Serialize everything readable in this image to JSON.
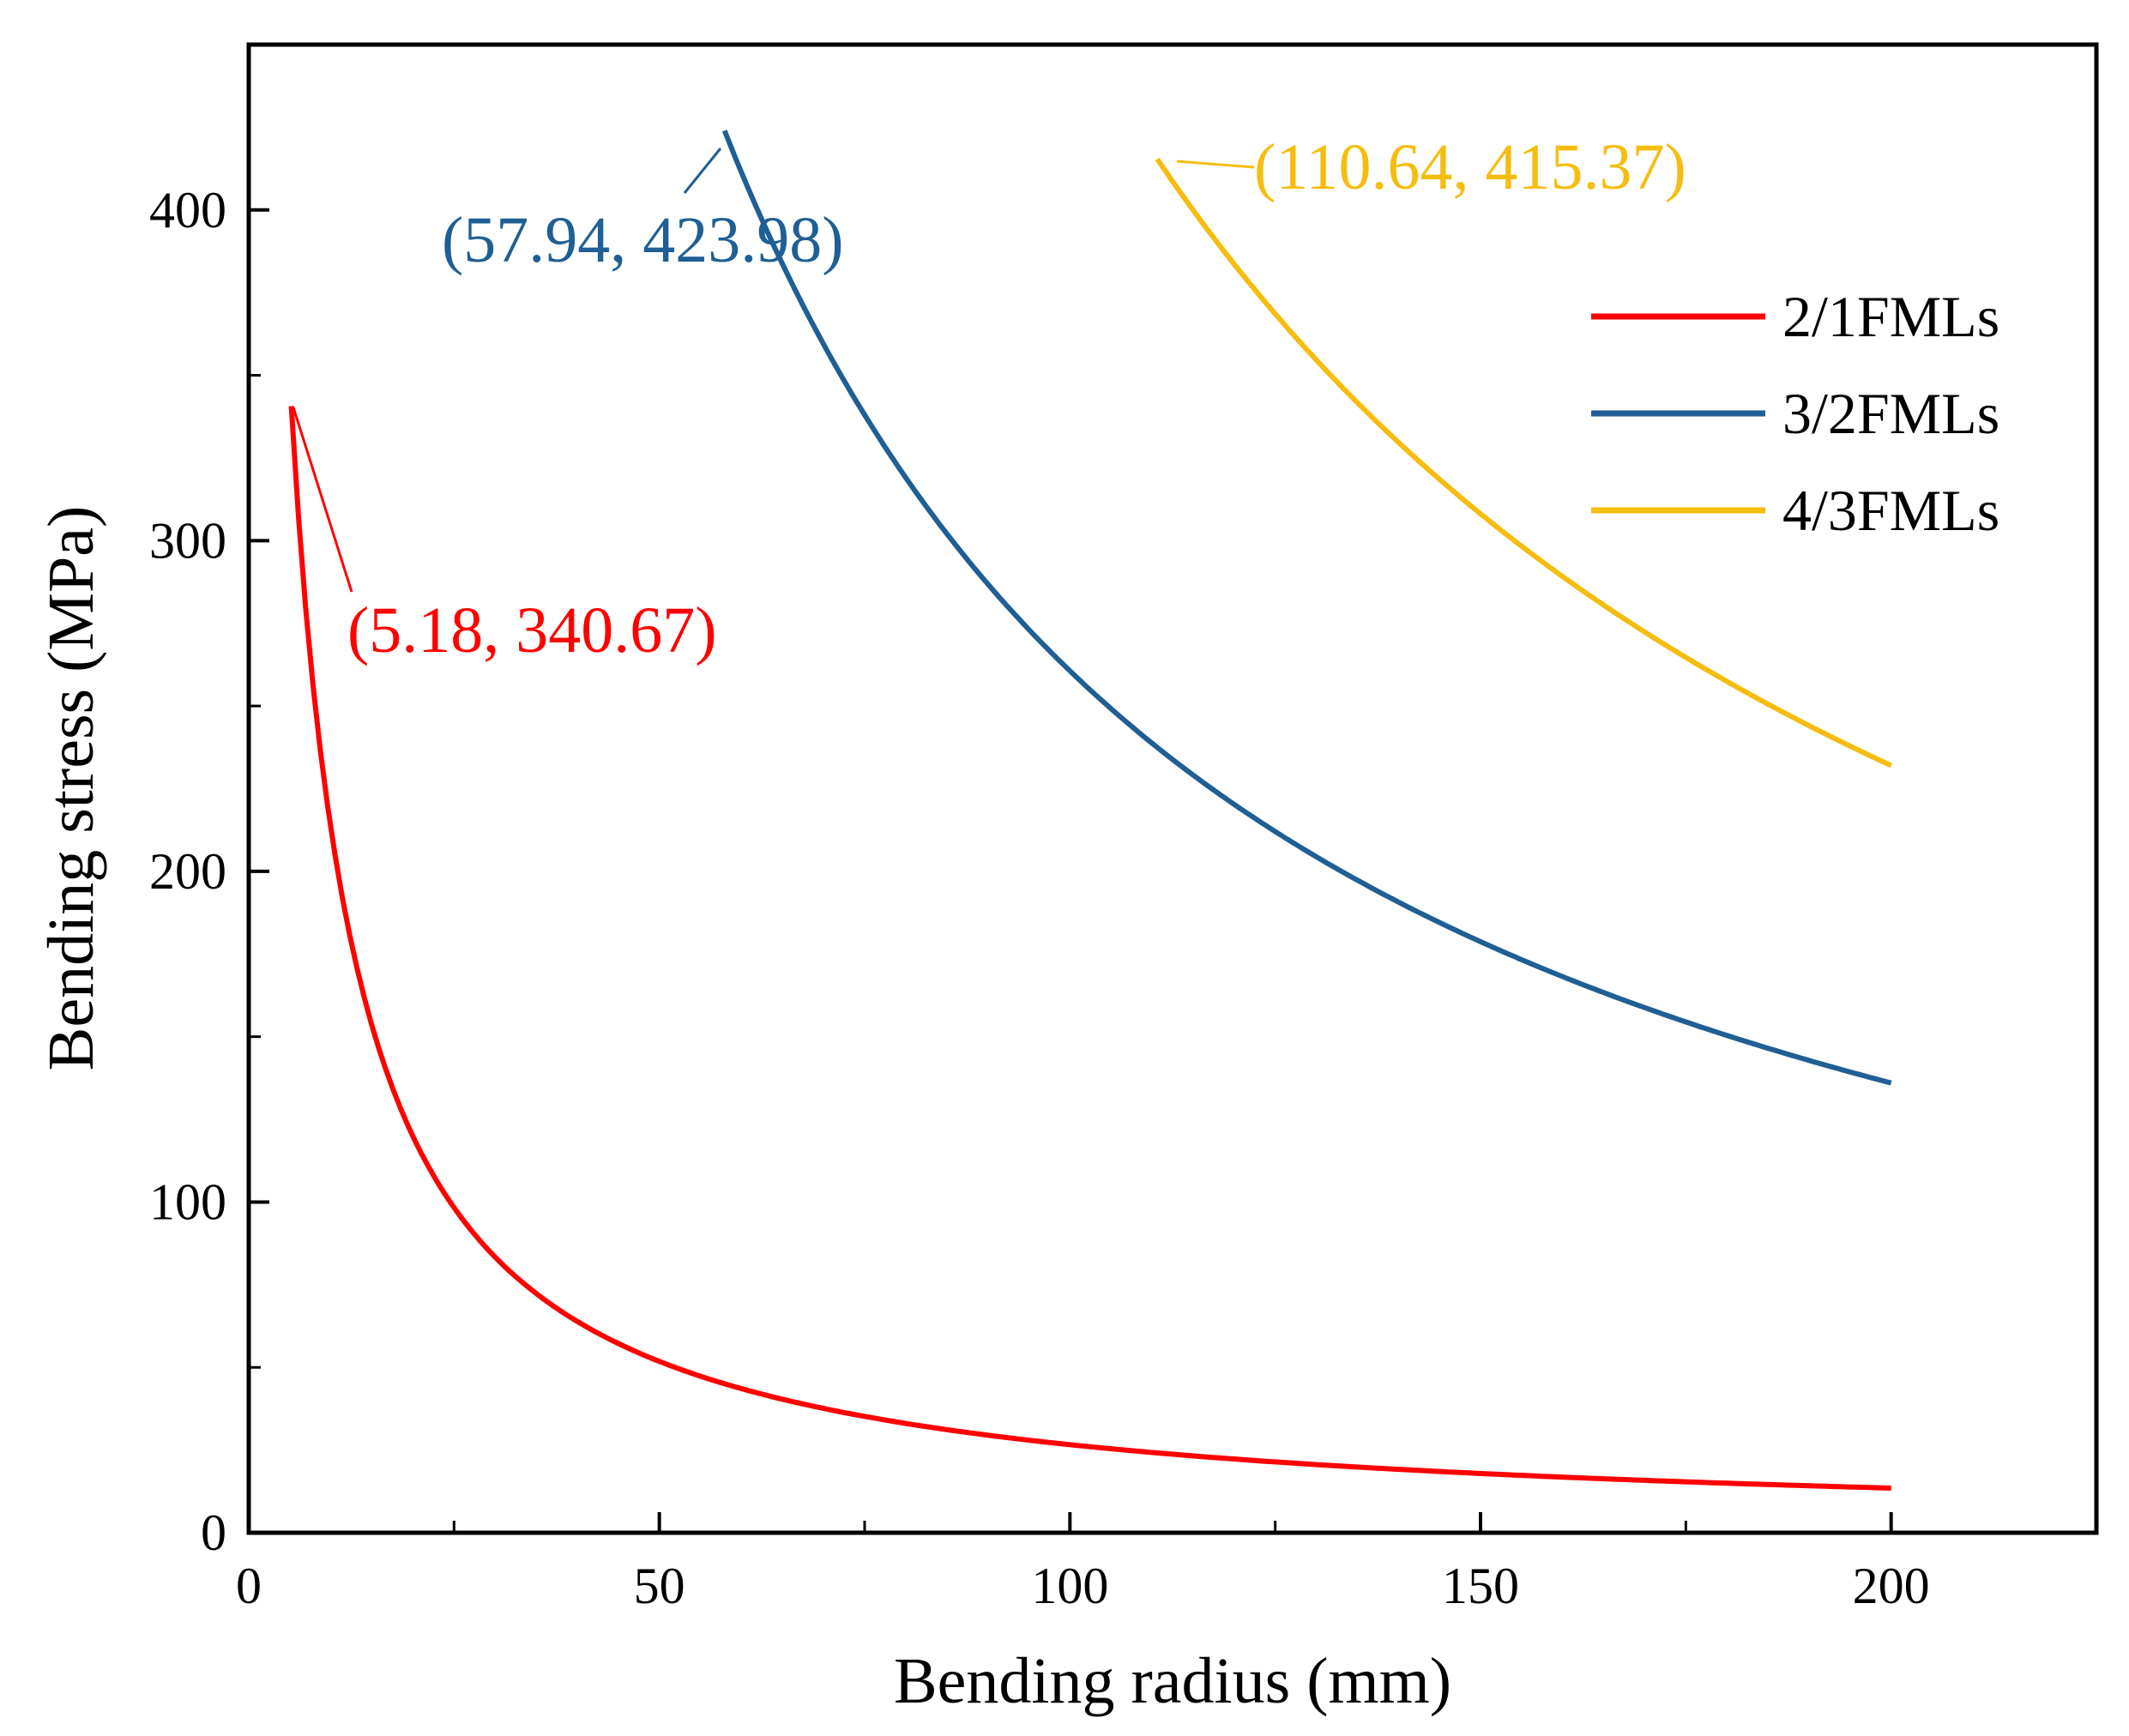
{
  "chart_data": {
    "type": "line",
    "title": "",
    "xlabel": "Bending radius (mm)",
    "ylabel": "Bending stress (MPa)",
    "xlim": [
      0,
      225
    ],
    "ylim": [
      0,
      450
    ],
    "x_ticks": [
      0,
      50,
      100,
      150,
      200
    ],
    "y_ticks": [
      0,
      100,
      200,
      300,
      400
    ],
    "x_tick_labels": [
      "0",
      "50",
      "100",
      "150",
      "200"
    ],
    "y_tick_labels": [
      "0",
      "100",
      "200",
      "300",
      "400"
    ],
    "grid": false,
    "legend_position": "top-right",
    "series": [
      {
        "name": "2/1FMLs",
        "color": "#ff0000",
        "x_start": 5.18,
        "x_end": 200,
        "peak": [
          5.18,
          340.67
        ],
        "end_value": 13.5,
        "annotation": "(5.18, 340.67)"
      },
      {
        "name": "3/2FMLs",
        "color": "#1f5f94",
        "x_start": 57.94,
        "x_end": 200,
        "peak": [
          57.94,
          423.98
        ],
        "end_value": 136,
        "annotation": "(57.94, 423.98)"
      },
      {
        "name": "4/3FMLs",
        "color": "#f5bd0f",
        "x_start": 110.64,
        "x_end": 200,
        "peak": [
          110.64,
          415.37
        ],
        "end_value": 232,
        "annotation": "(110.64, 415.37)"
      }
    ]
  }
}
